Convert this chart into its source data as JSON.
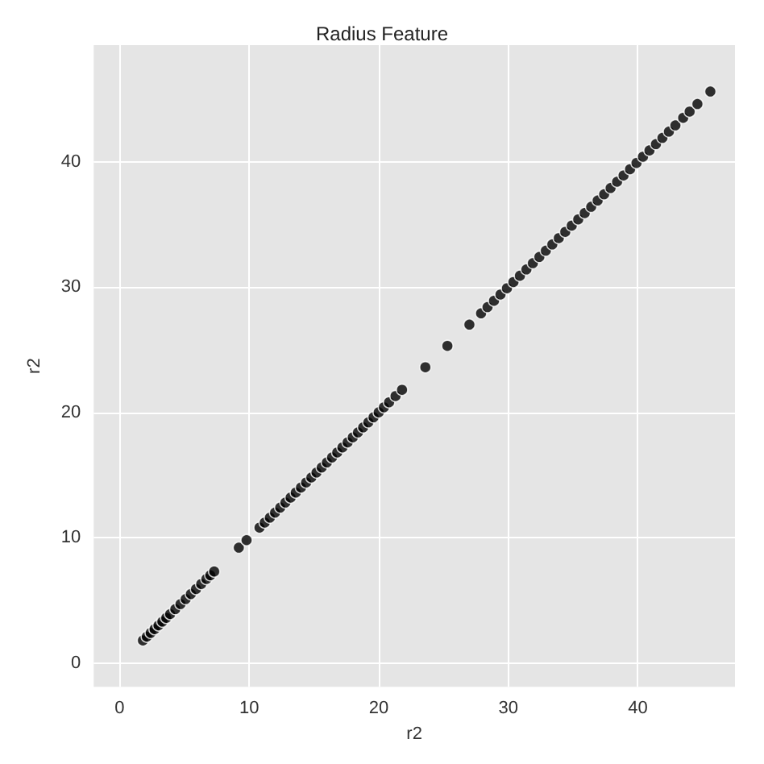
{
  "chart_data": {
    "type": "scatter",
    "title": "Radius Feature",
    "xlabel": "r2",
    "ylabel": "r2",
    "x": [
      1.8,
      2.1,
      2.4,
      2.7,
      3.0,
      3.3,
      3.6,
      3.9,
      4.3,
      4.7,
      5.1,
      5.5,
      5.9,
      6.3,
      6.7,
      7.0,
      7.3,
      9.2,
      9.8,
      10.8,
      11.2,
      11.6,
      12.0,
      12.4,
      12.8,
      13.2,
      13.6,
      14.0,
      14.4,
      14.8,
      15.2,
      15.6,
      16.0,
      16.4,
      16.8,
      17.2,
      17.6,
      18.0,
      18.4,
      18.8,
      19.2,
      19.6,
      20.0,
      20.4,
      20.8,
      21.3,
      21.8,
      23.6,
      25.3,
      27.0,
      27.9,
      28.4,
      28.9,
      29.4,
      29.9,
      30.4,
      30.9,
      31.4,
      31.9,
      32.4,
      32.9,
      33.4,
      33.9,
      34.4,
      34.9,
      35.4,
      35.9,
      36.4,
      36.9,
      37.4,
      37.9,
      38.4,
      38.9,
      39.4,
      39.9,
      40.4,
      40.9,
      41.4,
      41.9,
      42.4,
      42.9,
      43.5,
      44.0,
      44.6,
      45.6
    ],
    "values": [
      1.8,
      2.1,
      2.4,
      2.7,
      3.0,
      3.3,
      3.6,
      3.9,
      4.3,
      4.7,
      5.1,
      5.5,
      5.9,
      6.3,
      6.7,
      7.0,
      7.3,
      9.2,
      9.8,
      10.8,
      11.2,
      11.6,
      12.0,
      12.4,
      12.8,
      13.2,
      13.6,
      14.0,
      14.4,
      14.8,
      15.2,
      15.6,
      16.0,
      16.4,
      16.8,
      17.2,
      17.6,
      18.0,
      18.4,
      18.8,
      19.2,
      19.6,
      20.0,
      20.4,
      20.8,
      21.3,
      21.8,
      23.6,
      25.3,
      27.0,
      27.9,
      28.4,
      28.9,
      29.4,
      29.9,
      30.4,
      30.9,
      31.4,
      31.9,
      32.4,
      32.9,
      33.4,
      33.9,
      34.4,
      34.9,
      35.4,
      35.9,
      36.4,
      36.9,
      37.4,
      37.9,
      38.4,
      38.9,
      39.4,
      39.9,
      40.4,
      40.9,
      41.4,
      41.9,
      42.4,
      42.9,
      43.5,
      44.0,
      44.6,
      45.6
    ],
    "color": "#000000",
    "marker": "circle",
    "xlim": [
      -2,
      47.5
    ],
    "ylim": [
      -1.9,
      49.3
    ],
    "xticks": [
      0,
      10,
      20,
      30,
      40
    ],
    "yticks": [
      0,
      10,
      20,
      30,
      40
    ],
    "grid": true
  }
}
